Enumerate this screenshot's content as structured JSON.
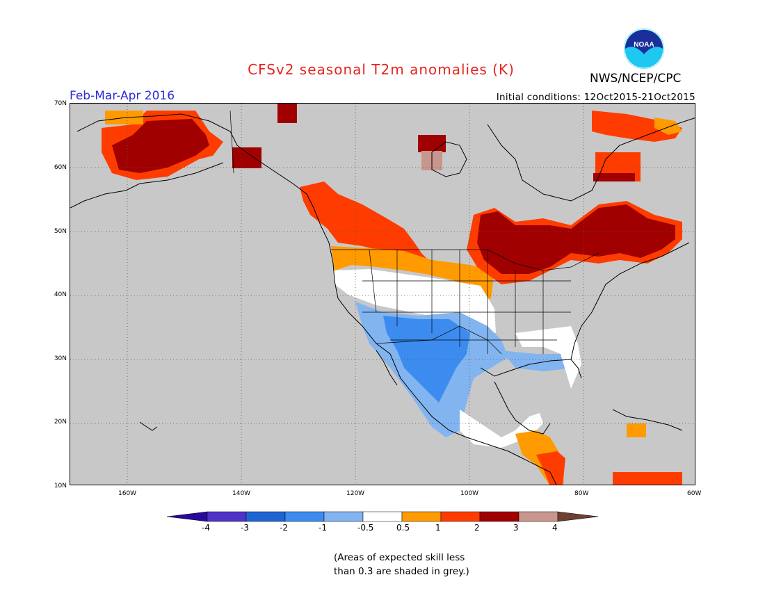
{
  "title": "CFSv2 seasonal T2m anomalies (K)",
  "org": "NWS/NCEP/CPC",
  "logo_text": "NOAA",
  "season": "Feb-Mar-Apr 2016",
  "initial_conditions": "Initial conditions: 12Oct2015-21Oct2015",
  "lat_labels": [
    "70N",
    "60N",
    "50N",
    "40N",
    "30N",
    "20N",
    "10N"
  ],
  "lon_labels": [
    "160W",
    "140W",
    "120W",
    "100W",
    "80W",
    "60W"
  ],
  "colorbar": {
    "labels": [
      "-4",
      "-3",
      "-2",
      "-1",
      "-0.5",
      "0.5",
      "1",
      "2",
      "3",
      "4"
    ],
    "colors": [
      "#2a0a9a",
      "#5032c8",
      "#1f64d2",
      "#3c8cf0",
      "#82b4f0",
      "#ffffff",
      "#ff9a00",
      "#ff3c00",
      "#a00000",
      "#c8968c",
      "#6e4032"
    ]
  },
  "note_line1": "(Areas of expected skill less",
  "note_line2": "than 0.3 are shaded in grey.)"
}
